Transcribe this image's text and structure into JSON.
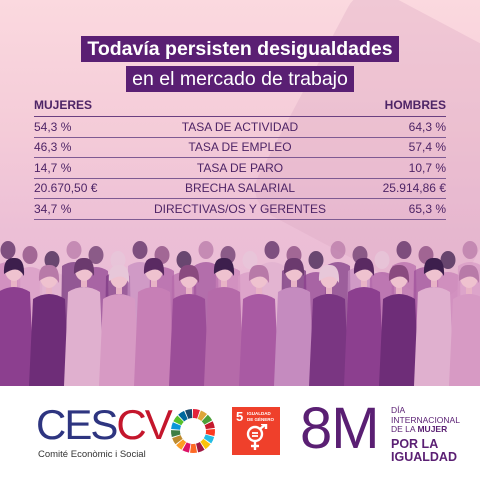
{
  "title": {
    "line1": "Todavía persisten desigualdades",
    "line2": "en el mercado de trabajo"
  },
  "table": {
    "col_left": "MUJERES",
    "col_right": "HOMBRES",
    "rows": [
      {
        "women": "54,3 %",
        "label": "TASA DE ACTIVIDAD",
        "men": "64,3 %"
      },
      {
        "women": "46,3 %",
        "label": "TASA DE EMPLEO",
        "men": "57,4 %"
      },
      {
        "women": "14,7 %",
        "label": "TASA DE PARO",
        "men": "10,7 %"
      },
      {
        "women": "20.670,50 €",
        "label": "BRECHA SALARIAL",
        "men": "25.914,86 €"
      },
      {
        "women": "34,7 %",
        "label": "DIRECTIVAS/OS Y GERENTES",
        "men": "65,3 %"
      }
    ]
  },
  "logos": {
    "cescv_ces": "CES",
    "cescv_cv": "CV",
    "cescv_subtitle": "Comité Econòmic i Social",
    "ods_number": "5",
    "ods_text_1": "IGUALDAD",
    "ods_text_2": "DE GÉNERO",
    "m8_big": "8M",
    "m8_line1": "DÍA",
    "m8_line2": "INTERNACIONAL",
    "m8_line3_a": "DE LA ",
    "m8_line3_b": "MUJER",
    "m8_line4": "POR LA",
    "m8_line5": "IGUALDAD"
  },
  "colors": {
    "purple_dark": "#5a1f73",
    "ods5_red": "#ef402b",
    "cescv_blue": "#2e3580",
    "cescv_red": "#c4162c"
  },
  "icons": {
    "illustration": "crowd-of-women-illustration",
    "sdg": "sdg-wheel-icon",
    "gender": "gender-equality-icon"
  }
}
